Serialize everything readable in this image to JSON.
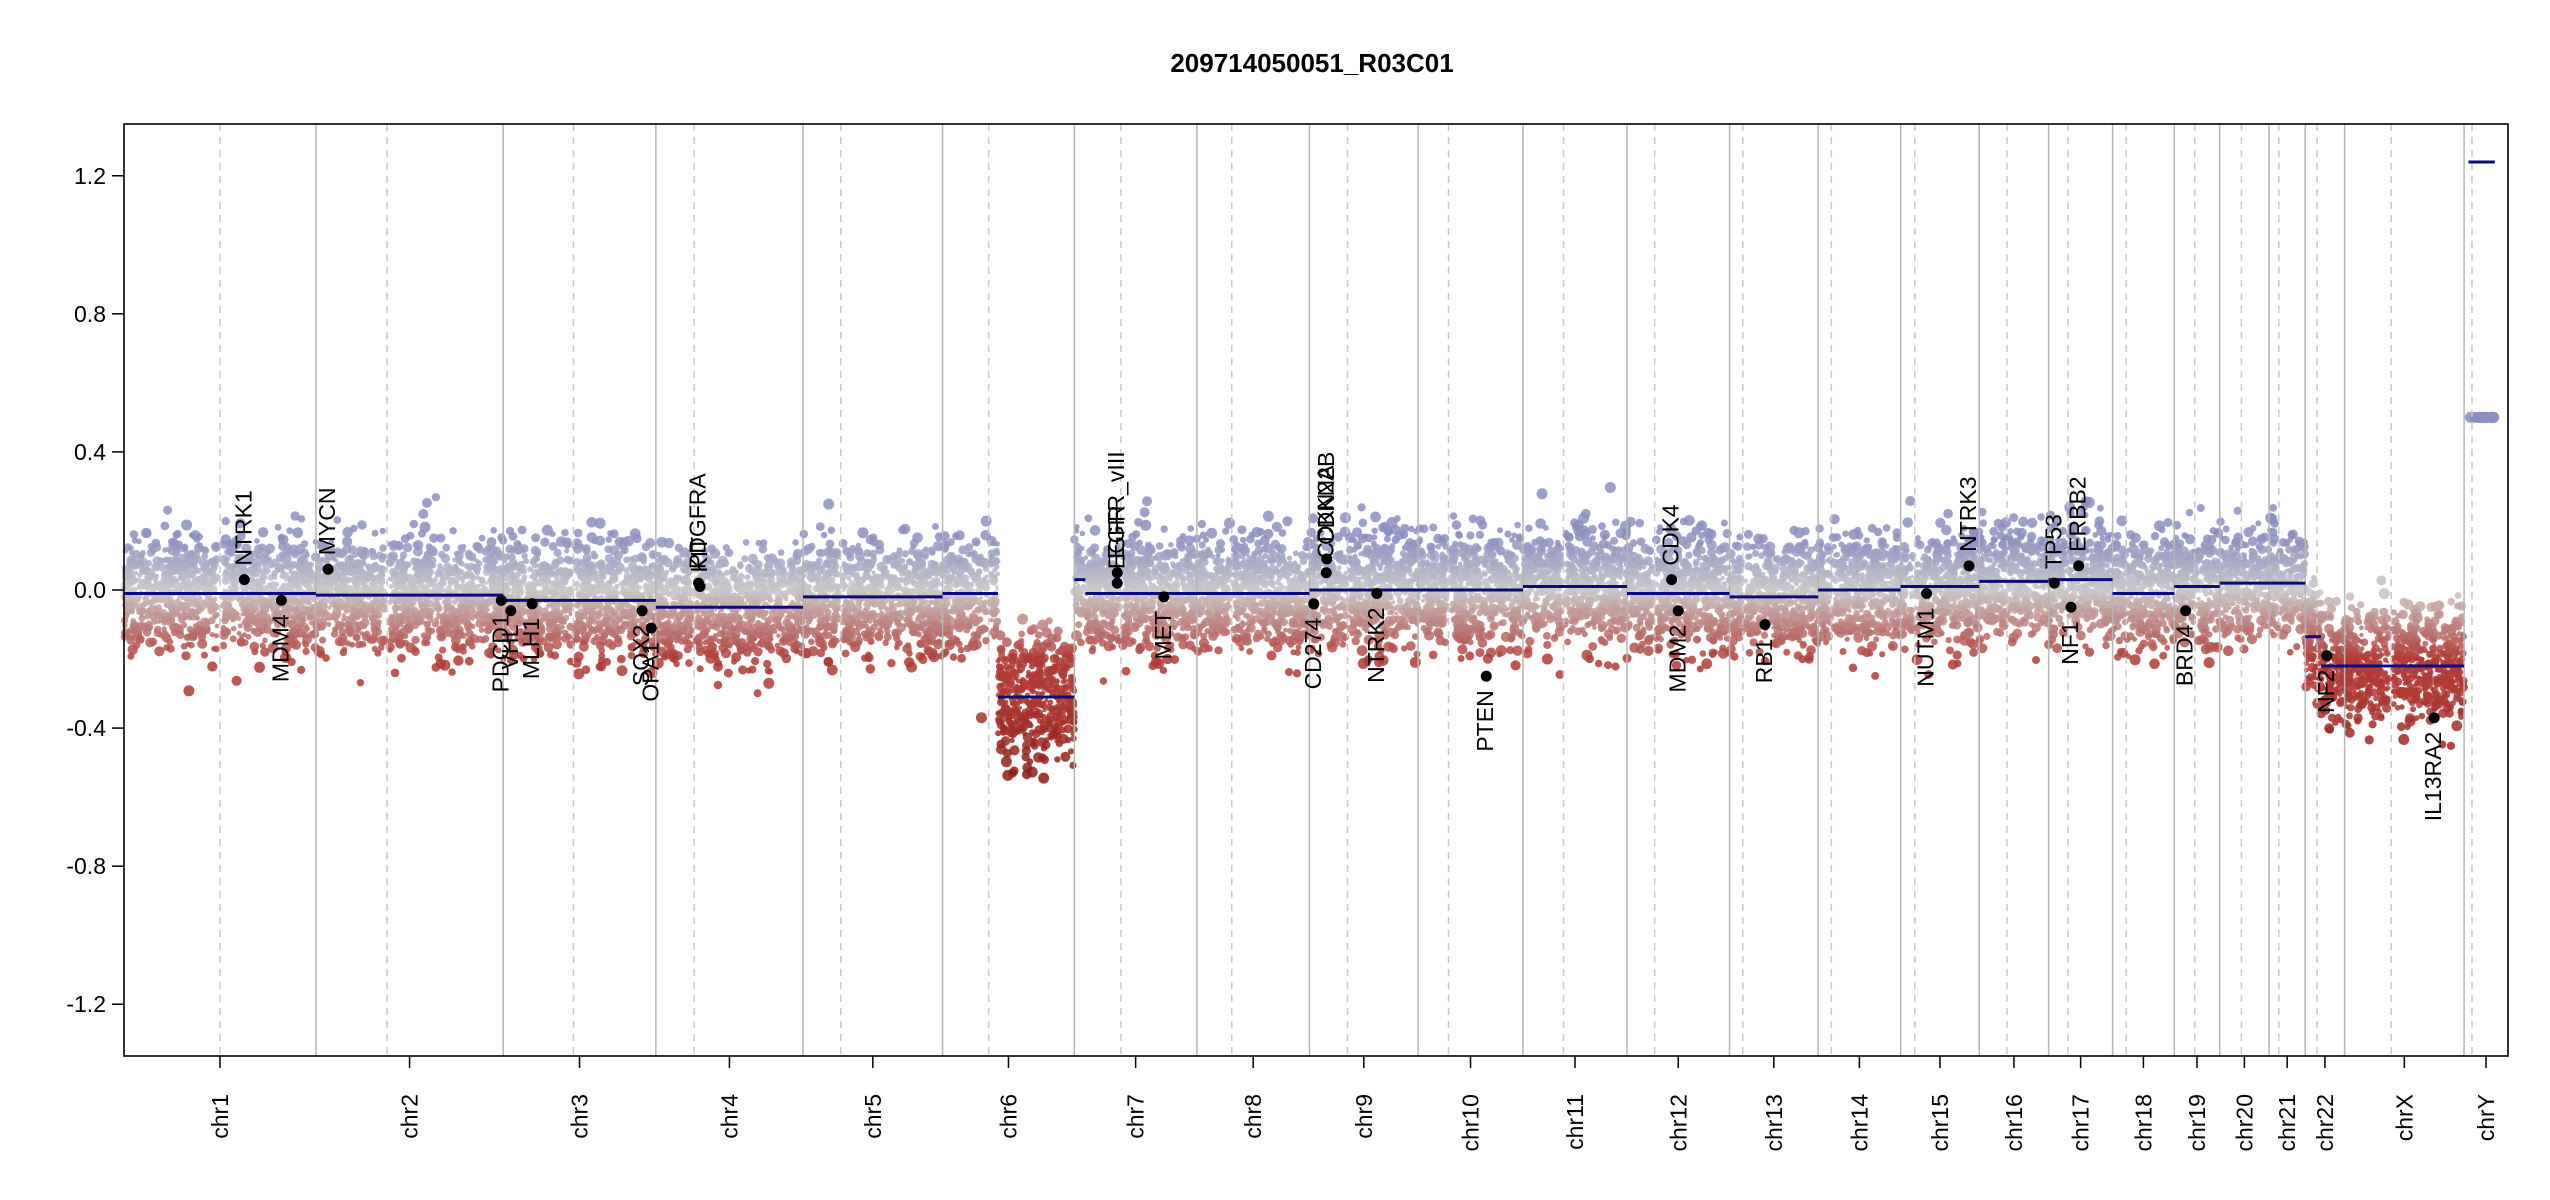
{
  "chart_data": {
    "type": "scatter",
    "title": "209714050051_R03C01",
    "xlabel": "",
    "ylabel": "",
    "ylim": [
      -1.35,
      1.35
    ],
    "y_ticks": [
      {
        "value": 1.2,
        "label": "1.2"
      },
      {
        "value": 0.8,
        "label": "0.8"
      },
      {
        "value": 0.4,
        "label": "0.4"
      },
      {
        "value": 0.0,
        "label": "0.0"
      },
      {
        "value": -0.4,
        "label": "-0.4"
      },
      {
        "value": -0.8,
        "label": "-0.8"
      },
      {
        "value": -1.2,
        "label": "-1.2"
      }
    ],
    "chromosomes": [
      {
        "name": "chr1",
        "size": 249,
        "cent": 0.5,
        "segments": [
          {
            "from": 0,
            "to": 1,
            "value": -0.01
          }
        ]
      },
      {
        "name": "chr2",
        "size": 243,
        "cent": 0.38,
        "segments": [
          {
            "from": 0,
            "to": 1,
            "value": -0.015
          }
        ]
      },
      {
        "name": "chr3",
        "size": 198,
        "cent": 0.46,
        "segments": [
          {
            "from": 0,
            "to": 1,
            "value": -0.03
          }
        ]
      },
      {
        "name": "chr4",
        "size": 191,
        "cent": 0.26,
        "segments": [
          {
            "from": 0,
            "to": 1,
            "value": -0.05
          }
        ]
      },
      {
        "name": "chr5",
        "size": 181,
        "cent": 0.27,
        "segments": [
          {
            "from": 0,
            "to": 1,
            "value": -0.02
          }
        ]
      },
      {
        "name": "chr6",
        "size": 171,
        "cent": 0.35,
        "segments": [
          {
            "from": 0,
            "to": 0.42,
            "value": -0.01
          },
          {
            "from": 0.42,
            "to": 1,
            "value": -0.31
          }
        ]
      },
      {
        "name": "chr7",
        "size": 159,
        "cent": 0.38,
        "segments": [
          {
            "from": 0,
            "to": 0.09,
            "value": 0.03
          },
          {
            "from": 0.09,
            "to": 1,
            "value": -0.01
          }
        ]
      },
      {
        "name": "chr8",
        "size": 146,
        "cent": 0.31,
        "segments": [
          {
            "from": 0,
            "to": 1,
            "value": -0.01
          }
        ]
      },
      {
        "name": "chr9",
        "size": 141,
        "cent": 0.35,
        "segments": [
          {
            "from": 0,
            "to": 1,
            "value": 0.0
          }
        ]
      },
      {
        "name": "chr10",
        "size": 136,
        "cent": 0.29,
        "segments": [
          {
            "from": 0,
            "to": 1,
            "value": 0.0
          }
        ]
      },
      {
        "name": "chr11",
        "size": 135,
        "cent": 0.39,
        "segments": [
          {
            "from": 0,
            "to": 1,
            "value": 0.01
          }
        ]
      },
      {
        "name": "chr12",
        "size": 133,
        "cent": 0.27,
        "segments": [
          {
            "from": 0,
            "to": 1,
            "value": -0.01
          }
        ]
      },
      {
        "name": "chr13",
        "size": 115,
        "cent": 0.15,
        "segments": [
          {
            "from": 0,
            "to": 1,
            "value": -0.02
          }
        ]
      },
      {
        "name": "chr14",
        "size": 107,
        "cent": 0.16,
        "segments": [
          {
            "from": 0,
            "to": 1,
            "value": 0.0
          }
        ]
      },
      {
        "name": "chr15",
        "size": 102,
        "cent": 0.18,
        "segments": [
          {
            "from": 0,
            "to": 1,
            "value": 0.01
          }
        ]
      },
      {
        "name": "chr16",
        "size": 90,
        "cent": 0.4,
        "segments": [
          {
            "from": 0,
            "to": 1,
            "value": 0.025
          }
        ]
      },
      {
        "name": "chr17",
        "size": 83,
        "cent": 0.3,
        "segments": [
          {
            "from": 0,
            "to": 1,
            "value": 0.03
          }
        ]
      },
      {
        "name": "chr18",
        "size": 80,
        "cent": 0.22,
        "segments": [
          {
            "from": 0,
            "to": 1,
            "value": -0.01
          }
        ]
      },
      {
        "name": "chr19",
        "size": 59,
        "cent": 0.45,
        "segments": [
          {
            "from": 0,
            "to": 1,
            "value": 0.01
          }
        ]
      },
      {
        "name": "chr20",
        "size": 64,
        "cent": 0.44,
        "segments": [
          {
            "from": 0,
            "to": 1,
            "value": 0.02
          }
        ]
      },
      {
        "name": "chr21",
        "size": 47,
        "cent": 0.27,
        "segments": [
          {
            "from": 0,
            "to": 1,
            "value": 0.02
          }
        ]
      },
      {
        "name": "chr22",
        "size": 51,
        "cent": 0.3,
        "segments": [
          {
            "from": 0,
            "to": 0.4,
            "value": -0.135
          },
          {
            "from": 0.4,
            "to": 1,
            "value": -0.22
          }
        ]
      },
      {
        "name": "chrX",
        "size": 155,
        "cent": 0.39,
        "segments": [
          {
            "from": 0,
            "to": 1,
            "value": -0.22
          }
        ]
      },
      {
        "name": "chrY",
        "size": 57,
        "cent": 0.18,
        "segments": [
          {
            "from": 0.1,
            "to": 0.7,
            "value": 1.24
          }
        ]
      }
    ],
    "genes": [
      {
        "name": "NTRK1",
        "chr": "chr1",
        "pos": 0.627,
        "value": 0.03,
        "side": "above"
      },
      {
        "name": "MDM4",
        "chr": "chr1",
        "pos": 0.82,
        "value": -0.03,
        "side": "below"
      },
      {
        "name": "MYCN",
        "chr": "chr2",
        "pos": 0.065,
        "value": 0.06,
        "side": "above"
      },
      {
        "name": "PDCD1",
        "chr": "chr2",
        "pos": 0.99,
        "value": -0.03,
        "side": "below"
      },
      {
        "name": "VHL",
        "chr": "chr3",
        "pos": 0.05,
        "value": -0.06,
        "side": "below"
      },
      {
        "name": "MLH1",
        "chr": "chr3",
        "pos": 0.19,
        "value": -0.04,
        "side": "below"
      },
      {
        "name": "SOX2",
        "chr": "chr3",
        "pos": 0.91,
        "value": -0.06,
        "side": "below"
      },
      {
        "name": "OPA1",
        "chr": "chr3",
        "pos": 0.97,
        "value": -0.11,
        "side": "below"
      },
      {
        "name": "PDGFRA",
        "chr": "chr4",
        "pos": 0.29,
        "value": 0.02,
        "side": "above"
      },
      {
        "name": "KIT",
        "chr": "chr4",
        "pos": 0.3,
        "value": 0.01,
        "side": "above"
      },
      {
        "name": "EGFR_vIII",
        "chr": "chr7",
        "pos": 0.35,
        "value": 0.05,
        "side": "above"
      },
      {
        "name": "EGFR",
        "chr": "chr7",
        "pos": 0.35,
        "value": 0.02,
        "side": "above"
      },
      {
        "name": "MET",
        "chr": "chr7",
        "pos": 0.73,
        "value": -0.02,
        "side": "below"
      },
      {
        "name": "CD274",
        "chr": "chr9",
        "pos": 0.04,
        "value": -0.04,
        "side": "below"
      },
      {
        "name": "CDKN2A",
        "chr": "chr9",
        "pos": 0.155,
        "value": 0.05,
        "side": "above"
      },
      {
        "name": "CDKN2B",
        "chr": "chr9",
        "pos": 0.16,
        "value": 0.09,
        "side": "above"
      },
      {
        "name": "NTRK2",
        "chr": "chr9",
        "pos": 0.62,
        "value": -0.01,
        "side": "below"
      },
      {
        "name": "PTEN",
        "chr": "chr10",
        "pos": 0.65,
        "value": -0.25,
        "side": "below"
      },
      {
        "name": "CDK4",
        "chr": "chr12",
        "pos": 0.435,
        "value": 0.03,
        "side": "above"
      },
      {
        "name": "MDM2",
        "chr": "chr12",
        "pos": 0.5,
        "value": -0.06,
        "side": "below"
      },
      {
        "name": "RB1",
        "chr": "chr13",
        "pos": 0.4,
        "value": -0.1,
        "side": "below"
      },
      {
        "name": "NUTM1",
        "chr": "chr15",
        "pos": 0.33,
        "value": -0.01,
        "side": "below"
      },
      {
        "name": "NTRK3",
        "chr": "chr15",
        "pos": 0.87,
        "value": 0.07,
        "side": "above"
      },
      {
        "name": "TP53",
        "chr": "chr17",
        "pos": 0.09,
        "value": 0.02,
        "side": "above"
      },
      {
        "name": "NF1",
        "chr": "chr17",
        "pos": 0.35,
        "value": -0.05,
        "side": "below"
      },
      {
        "name": "ERBB2",
        "chr": "chr17",
        "pos": 0.47,
        "value": 0.07,
        "side": "above"
      },
      {
        "name": "BRD4",
        "chr": "chr19",
        "pos": 0.25,
        "value": -0.06,
        "side": "below"
      },
      {
        "name": "NF2",
        "chr": "chr22",
        "pos": 0.55,
        "value": -0.19,
        "side": "below"
      },
      {
        "name": "IL13RA2",
        "chr": "chrX",
        "pos": 0.75,
        "value": -0.37,
        "side": "below"
      }
    ],
    "colors": {
      "segment": "#0b0b7a",
      "gain": "#8c8fc0",
      "neutral": "#c9c9c9",
      "loss": "#b03b36",
      "deep_loss": "#8b1a14",
      "solid_sep": "#b5b5b5",
      "dashed_sep": "#c8c8c8",
      "axis": "#000000"
    }
  }
}
